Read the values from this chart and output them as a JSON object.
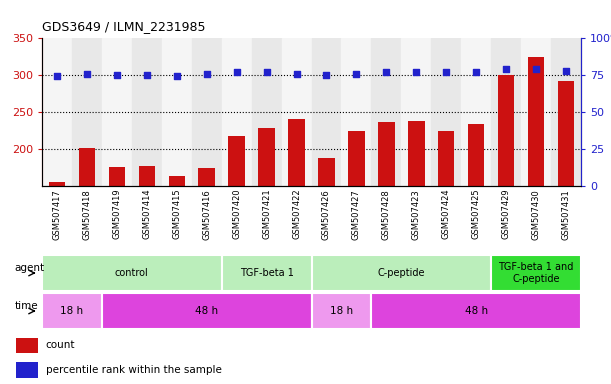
{
  "title": "GDS3649 / ILMN_2231985",
  "samples": [
    "GSM507417",
    "GSM507418",
    "GSM507419",
    "GSM507414",
    "GSM507415",
    "GSM507416",
    "GSM507420",
    "GSM507421",
    "GSM507422",
    "GSM507426",
    "GSM507427",
    "GSM507428",
    "GSM507423",
    "GSM507424",
    "GSM507425",
    "GSM507429",
    "GSM507430",
    "GSM507431"
  ],
  "bar_values": [
    155,
    202,
    176,
    177,
    163,
    175,
    218,
    228,
    241,
    188,
    224,
    237,
    238,
    224,
    234,
    300,
    325,
    292
  ],
  "percentile_values": [
    74,
    76,
    75,
    75,
    74,
    76,
    77,
    77,
    76,
    75,
    76,
    77,
    77,
    77,
    77,
    79,
    79,
    78
  ],
  "bar_color": "#CC1111",
  "dot_color": "#2222CC",
  "ylim_left": [
    150,
    350
  ],
  "ylim_right": [
    0,
    100
  ],
  "yticks_left": [
    200,
    250,
    300,
    350
  ],
  "ytick_labels_left": [
    "200",
    "250",
    "300",
    "350"
  ],
  "yticks_right": [
    0,
    25,
    50,
    75,
    100
  ],
  "ytick_labels_right": [
    "0",
    "25",
    "50",
    "75",
    "100%"
  ],
  "agent_groups": [
    {
      "label": "control",
      "start": 0,
      "end": 6,
      "color": "#BBEEBB"
    },
    {
      "label": "TGF-beta 1",
      "start": 6,
      "end": 9,
      "color": "#BBEEBB"
    },
    {
      "label": "C-peptide",
      "start": 9,
      "end": 15,
      "color": "#BBEEBB"
    },
    {
      "label": "TGF-beta 1 and\nC-peptide",
      "start": 15,
      "end": 18,
      "color": "#33DD33"
    }
  ],
  "time_groups": [
    {
      "label": "18 h",
      "start": 0,
      "end": 2,
      "color": "#EE99EE"
    },
    {
      "label": "48 h",
      "start": 2,
      "end": 9,
      "color": "#DD44DD"
    },
    {
      "label": "18 h",
      "start": 9,
      "end": 11,
      "color": "#EE99EE"
    },
    {
      "label": "48 h",
      "start": 11,
      "end": 18,
      "color": "#DD44DD"
    }
  ],
  "col_bg_odd": "#E8E8E8",
  "col_bg_even": "#F5F5F5",
  "legend_count_color": "#CC1111",
  "legend_dot_color": "#2222CC"
}
